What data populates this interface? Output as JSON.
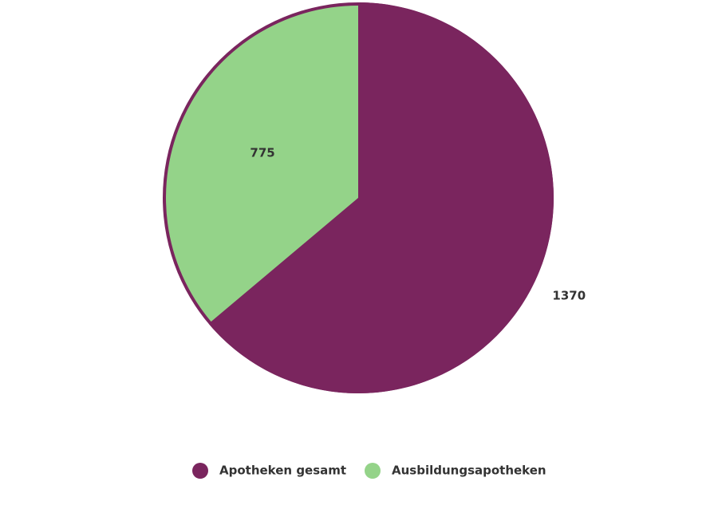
{
  "chart_data": {
    "type": "pie",
    "categories": [
      "Apotheken gesamt",
      "Ausbildungsapotheken"
    ],
    "values": [
      1370,
      775
    ],
    "colors": [
      "#7a255e",
      "#94d389"
    ]
  }
}
